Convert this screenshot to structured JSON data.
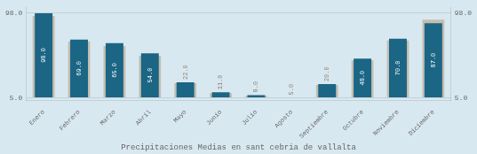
{
  "chart_data": {
    "type": "bar",
    "title": "Precipitaciones Medias en sant cebria de vallalta",
    "categories": [
      "Enero",
      "Febrero",
      "Marzo",
      "Abril",
      "Mayo",
      "Junio",
      "Julio",
      "Agosto",
      "Septiembre",
      "Octubre",
      "Noviembre",
      "Diciembre"
    ],
    "series": [
      {
        "color": "#c2bdb0",
        "values": [
          95.0,
          67.0,
          62.0,
          51.0,
          21.0,
          10.0,
          7.0,
          4.5,
          19.0,
          46.0,
          68.0,
          91.0
        ]
      },
      {
        "color": "#1b6585",
        "values": [
          98.0,
          69.0,
          65.0,
          54.0,
          22.0,
          11.0,
          8.0,
          5.0,
          20.0,
          48.0,
          70.0,
          87.0
        ],
        "value_labels": [
          "98.0",
          "69.0",
          "65.0",
          "54.0",
          "22.0",
          "11.0",
          "8.0",
          "5.0",
          "20.0",
          "48.0",
          "70.0",
          "87.0"
        ]
      }
    ],
    "ylim": [
      2,
      104
    ],
    "yticks": [
      {
        "value": 5,
        "label": "5.0"
      },
      {
        "value": 98,
        "label": "98.0"
      }
    ],
    "y2lim": [
      2,
      104
    ],
    "y2ticks": [
      {
        "value": 5,
        "label": "5.0"
      },
      {
        "value": 98,
        "label": "98.0"
      }
    ],
    "grid": true,
    "data_labels": true
  }
}
